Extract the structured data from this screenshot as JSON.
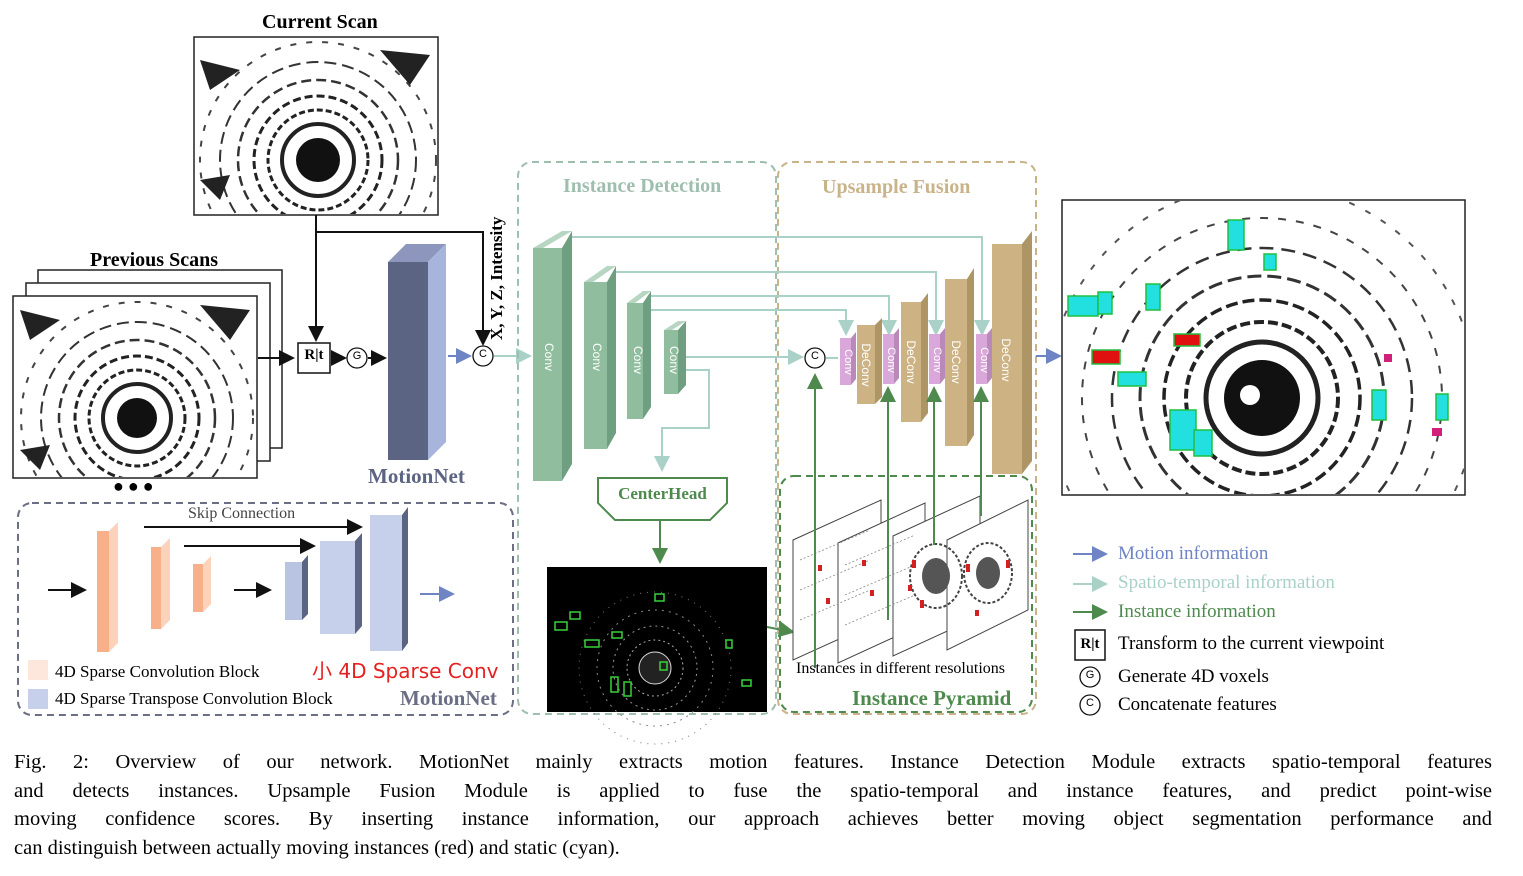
{
  "labels": {
    "current_scan": "Current Scan",
    "previous_scans": "Previous Scans",
    "dots": "●●●",
    "rt": "R|t",
    "g": "G",
    "c": "C",
    "xyz": "X, Y, Z, Intensity",
    "motionnet": "MotionNet",
    "centerhead": "CenterHead",
    "instances_caption": "Instances in different resolutions",
    "instance_pyramid": "Instance Pyramid"
  },
  "modules": {
    "instance_detection": "Instance Detection",
    "upsample_fusion": "Upsample Fusion"
  },
  "blocks": {
    "conv": "Conv",
    "deconv": "DeConv"
  },
  "motionnet_box": {
    "skip_connection": "Skip Connection",
    "sparse_conv": "4D Sparse Convolution Block",
    "sparse_transpose": "4D Sparse Transpose Convolution Block",
    "overlay_note": "小 4D Sparse Conv",
    "title": "MotionNet"
  },
  "legend": {
    "motion": "Motion information",
    "spatio": "Spatio-temporal information",
    "instance": "Instance information",
    "rt_desc": "Transform to the current viewpoint",
    "g_desc": "Generate 4D voxels",
    "c_desc": "Concatenate features"
  },
  "colors": {
    "motion": "#6f84c4",
    "spatio": "#a9d1c8",
    "instance": "#4e8a4e",
    "conv_green": "#8fbd9e",
    "deconv_tan": "#cdb283",
    "conv_pink": "#d9a7d9",
    "motionnet_blue": "#a7b5dc",
    "motionnet_dark": "#5b6482",
    "orange": "#f8b08a",
    "box_gray": "#6a6f85",
    "module_green": "#9fbfae",
    "module_tan": "#c9b48a"
  },
  "caption": {
    "line1": "Fig. 2: Overview of our network. MotionNet mainly extracts motion features. Instance Detection Module extracts spatio-temporal features",
    "line2": "and detects instances. Upsample Fusion Module is applied to fuse the spatio-temporal and instance features, and predict point-wise",
    "line3": "moving confidence scores. By inserting instance information, our approach achieves better moving object segmentation performance and",
    "line4": "can distinguish between actually moving instances (red) and static (cyan)."
  }
}
